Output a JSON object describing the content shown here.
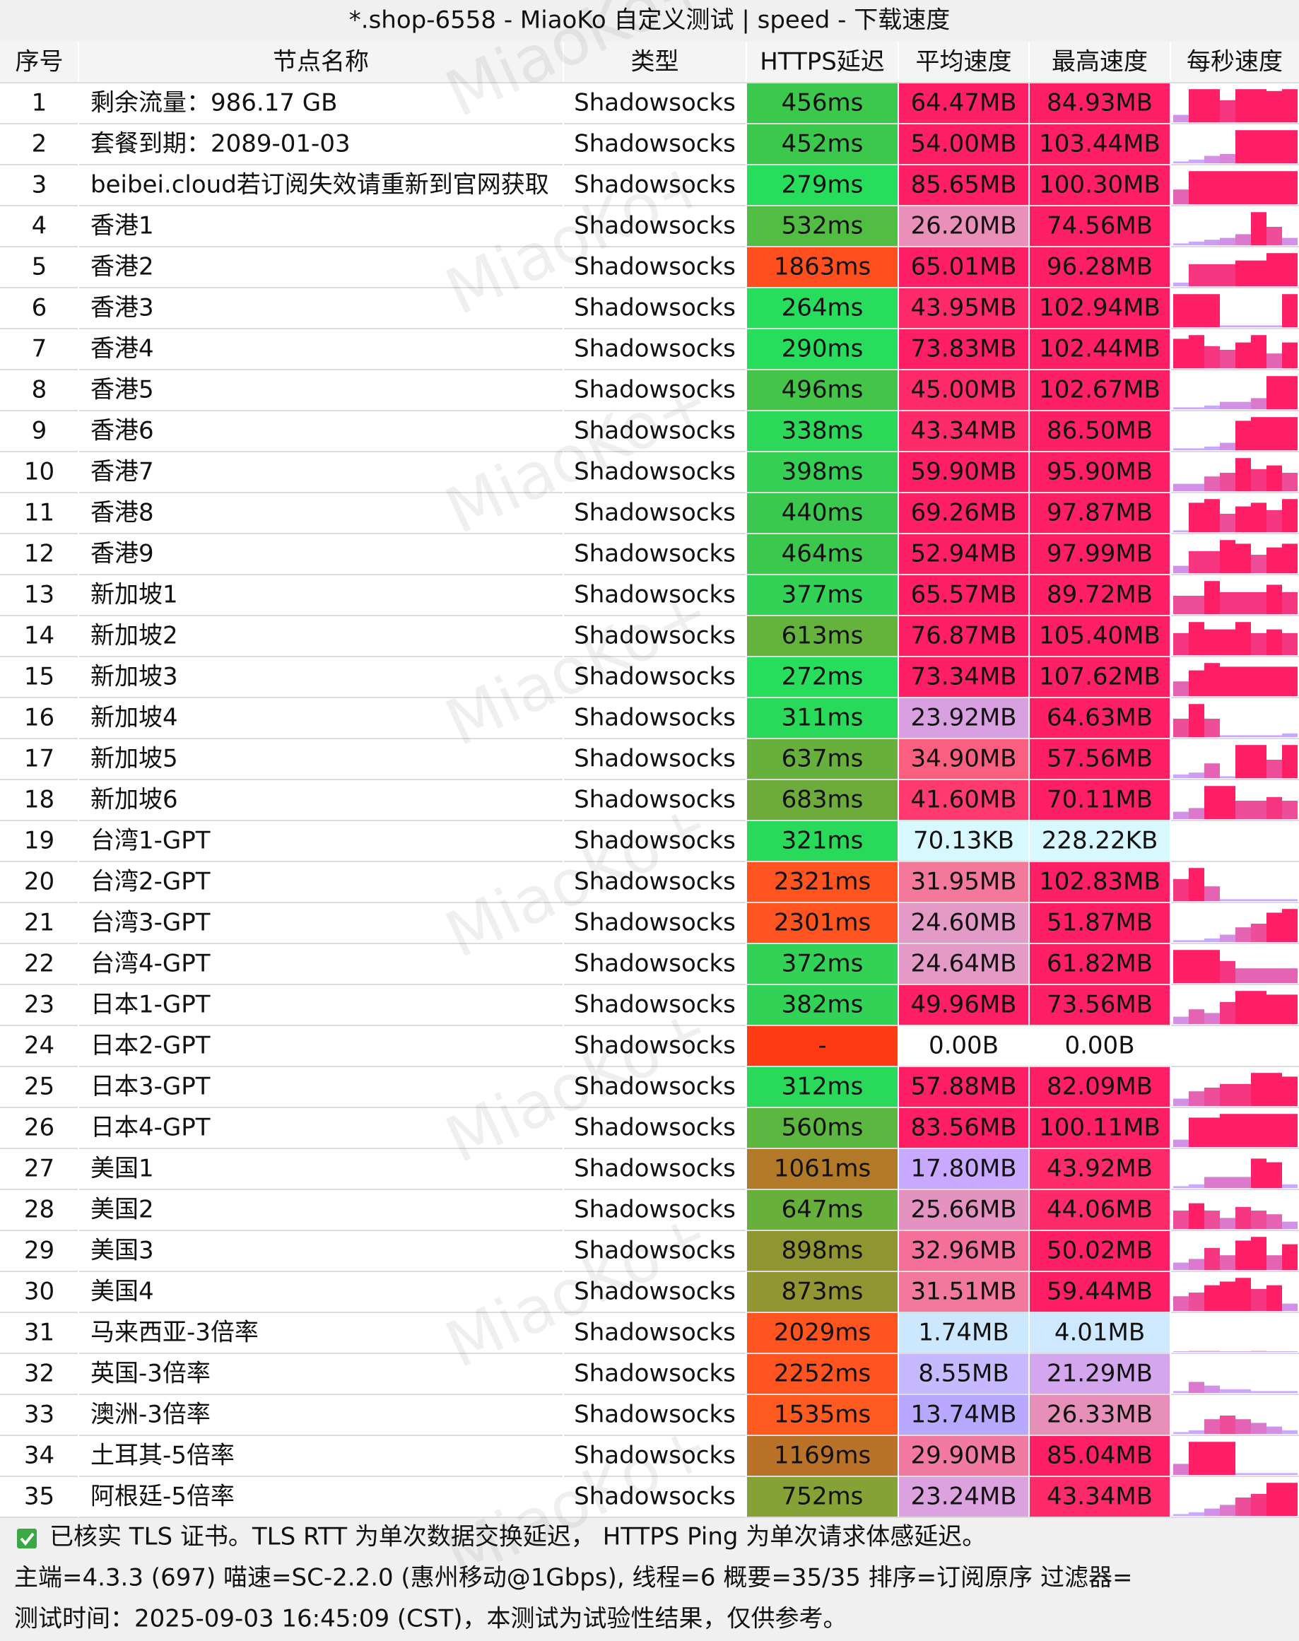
{
  "title": "*.shop-6558 - MiaoKo 自定义测试 | speed - 下载速度",
  "watermark": "MiaoKo+",
  "header": [
    "序号",
    "节点名称",
    "类型",
    "HTTPS延迟",
    "平均速度",
    "最高速度",
    "每秒速度"
  ],
  "rows": [
    {
      "no": 1,
      "name": "剩余流量：986.17 GB",
      "type": "Shadowsocks",
      "latency": "456ms",
      "latency_color": "#3cc84d",
      "avg": "64.47MB",
      "avg_color": "#ff1f66",
      "max": "84.93MB",
      "max_color": "#ff1f66",
      "speeds": [
        20,
        90,
        90,
        60,
        90,
        90,
        85,
        90
      ]
    },
    {
      "no": 2,
      "name": "套餐到期：2089-01-03",
      "type": "Shadowsocks",
      "latency": "452ms",
      "latency_color": "#3cc84d",
      "avg": "54.00MB",
      "avg_color": "#ff1f66",
      "max": "103.44MB",
      "max_color": "#ff1f66",
      "speeds": [
        5,
        10,
        20,
        25,
        90,
        90,
        90,
        90
      ]
    },
    {
      "no": 3,
      "name": "beibei.cloud若订阅失效请重新到官网获取",
      "type": "Shadowsocks",
      "latency": "279ms",
      "latency_color": "#26de5c",
      "avg": "85.65MB",
      "avg_color": "#ff1f66",
      "max": "100.30MB",
      "max_color": "#ff1f66",
      "speeds": [
        40,
        90,
        90,
        90,
        90,
        90,
        90,
        90
      ]
    },
    {
      "no": 4,
      "name": "香港1",
      "type": "Shadowsocks",
      "latency": "532ms",
      "latency_color": "#52bd43",
      "avg": "26.20MB",
      "avg_color": "#e98fb8",
      "max": "74.56MB",
      "max_color": "#ff1f66",
      "speeds": [
        5,
        10,
        15,
        20,
        30,
        90,
        50,
        20
      ]
    },
    {
      "no": 5,
      "name": "香港2",
      "type": "Shadowsocks",
      "latency": "1863ms",
      "latency_color": "#ff4f1f",
      "avg": "65.01MB",
      "avg_color": "#ff1f66",
      "max": "96.28MB",
      "max_color": "#ff1f66",
      "speeds": [
        10,
        60,
        60,
        60,
        70,
        70,
        90,
        90
      ]
    },
    {
      "no": 6,
      "name": "香港3",
      "type": "Shadowsocks",
      "latency": "264ms",
      "latency_color": "#26de5c",
      "avg": "43.95MB",
      "avg_color": "#ff2a6a",
      "max": "102.94MB",
      "max_color": "#ff1f66",
      "speeds": [
        90,
        90,
        90,
        5,
        5,
        5,
        5,
        90
      ]
    },
    {
      "no": 7,
      "name": "香港4",
      "type": "Shadowsocks",
      "latency": "290ms",
      "latency_color": "#26de5c",
      "avg": "73.83MB",
      "avg_color": "#ff1f66",
      "max": "102.44MB",
      "max_color": "#ff1f66",
      "speeds": [
        80,
        90,
        60,
        50,
        70,
        90,
        40,
        70
      ]
    },
    {
      "no": 8,
      "name": "香港5",
      "type": "Shadowsocks",
      "latency": "496ms",
      "latency_color": "#44c449",
      "avg": "45.00MB",
      "avg_color": "#ff2a6a",
      "max": "102.67MB",
      "max_color": "#ff1f66",
      "speeds": [
        5,
        5,
        10,
        20,
        20,
        30,
        90,
        90
      ]
    },
    {
      "no": 9,
      "name": "香港6",
      "type": "Shadowsocks",
      "latency": "338ms",
      "latency_color": "#2cd858",
      "avg": "43.34MB",
      "avg_color": "#ff2a6a",
      "max": "86.50MB",
      "max_color": "#ff1f66",
      "speeds": [
        5,
        5,
        10,
        20,
        80,
        90,
        90,
        90
      ]
    },
    {
      "no": 10,
      "name": "香港7",
      "type": "Shadowsocks",
      "latency": "398ms",
      "latency_color": "#33d054",
      "avg": "59.90MB",
      "avg_color": "#ff1f66",
      "max": "95.90MB",
      "max_color": "#ff1f66",
      "speeds": [
        20,
        20,
        40,
        50,
        90,
        60,
        70,
        50
      ]
    },
    {
      "no": 11,
      "name": "香港8",
      "type": "Shadowsocks",
      "latency": "440ms",
      "latency_color": "#3ac94e",
      "avg": "69.26MB",
      "avg_color": "#ff1f66",
      "max": "97.87MB",
      "max_color": "#ff1f66",
      "speeds": [
        5,
        80,
        90,
        50,
        70,
        80,
        60,
        90
      ]
    },
    {
      "no": 12,
      "name": "香港9",
      "type": "Shadowsocks",
      "latency": "464ms",
      "latency_color": "#3cc84d",
      "avg": "52.94MB",
      "avg_color": "#ff1f66",
      "max": "97.99MB",
      "max_color": "#ff1f66",
      "speeds": [
        20,
        60,
        60,
        90,
        80,
        50,
        70,
        80
      ]
    },
    {
      "no": 13,
      "name": "新加坡1",
      "type": "Shadowsocks",
      "latency": "377ms",
      "latency_color": "#31d256",
      "avg": "65.57MB",
      "avg_color": "#ff1f66",
      "max": "89.72MB",
      "max_color": "#ff1f66",
      "speeds": [
        50,
        50,
        90,
        60,
        60,
        60,
        80,
        60
      ]
    },
    {
      "no": 14,
      "name": "新加坡2",
      "type": "Shadowsocks",
      "latency": "613ms",
      "latency_color": "#64b33d",
      "avg": "76.87MB",
      "avg_color": "#ff1f66",
      "max": "105.40MB",
      "max_color": "#ff1f66",
      "speeds": [
        60,
        90,
        70,
        70,
        90,
        60,
        70,
        60
      ]
    },
    {
      "no": 15,
      "name": "新加坡3",
      "type": "Shadowsocks",
      "latency": "272ms",
      "latency_color": "#26de5c",
      "avg": "73.34MB",
      "avg_color": "#ff1f66",
      "max": "107.62MB",
      "max_color": "#ff1f66",
      "speeds": [
        40,
        70,
        90,
        80,
        80,
        80,
        80,
        80
      ]
    },
    {
      "no": 16,
      "name": "新加坡4",
      "type": "Shadowsocks",
      "latency": "311ms",
      "latency_color": "#29da5a",
      "avg": "23.92MB",
      "avg_color": "#d8a0e0",
      "max": "64.63MB",
      "max_color": "#ff1f66",
      "speeds": [
        50,
        90,
        50,
        5,
        5,
        5,
        5,
        10
      ]
    },
    {
      "no": 17,
      "name": "新加坡5",
      "type": "Shadowsocks",
      "latency": "637ms",
      "latency_color": "#68b03c",
      "avg": "34.90MB",
      "avg_color": "#fb5f7f",
      "max": "57.56MB",
      "max_color": "#ff1f66",
      "speeds": [
        10,
        15,
        40,
        5,
        90,
        90,
        50,
        90
      ]
    },
    {
      "no": 18,
      "name": "新加坡6",
      "type": "Shadowsocks",
      "latency": "683ms",
      "latency_color": "#6dac3b",
      "avg": "41.60MB",
      "avg_color": "#ff3a70",
      "max": "70.11MB",
      "max_color": "#ff1f66",
      "speeds": [
        20,
        30,
        90,
        90,
        50,
        50,
        60,
        50
      ]
    },
    {
      "no": 19,
      "name": "台湾1-GPT",
      "type": "Shadowsocks",
      "latency": "321ms",
      "latency_color": "#29da5a",
      "avg": "70.13KB",
      "avg_color": "#d8f8ff",
      "max": "228.22KB",
      "max_color": "#d8f8ff",
      "speeds": [
        0,
        0,
        0,
        0,
        0,
        0,
        0,
        0
      ]
    },
    {
      "no": 20,
      "name": "台湾2-GPT",
      "type": "Shadowsocks",
      "latency": "2321ms",
      "latency_color": "#ff5420",
      "avg": "31.95MB",
      "avg_color": "#f4789c",
      "max": "102.83MB",
      "max_color": "#ff1f66",
      "speeds": [
        60,
        90,
        40,
        5,
        5,
        5,
        5,
        5
      ]
    },
    {
      "no": 21,
      "name": "台湾3-GPT",
      "type": "Shadowsocks",
      "latency": "2301ms",
      "latency_color": "#ff5420",
      "avg": "24.60MB",
      "avg_color": "#e49ac6",
      "max": "51.87MB",
      "max_color": "#ff1f66",
      "speeds": [
        5,
        5,
        10,
        20,
        40,
        50,
        80,
        90
      ]
    },
    {
      "no": 22,
      "name": "台湾4-GPT",
      "type": "Shadowsocks",
      "latency": "372ms",
      "latency_color": "#31d256",
      "avg": "24.64MB",
      "avg_color": "#e49ac6",
      "max": "61.82MB",
      "max_color": "#ff1f66",
      "speeds": [
        90,
        90,
        90,
        60,
        40,
        40,
        40,
        40
      ]
    },
    {
      "no": 23,
      "name": "日本1-GPT",
      "type": "Shadowsocks",
      "latency": "382ms",
      "latency_color": "#31d256",
      "avg": "49.96MB",
      "avg_color": "#ff1f66",
      "max": "73.56MB",
      "max_color": "#ff1f66",
      "speeds": [
        20,
        40,
        30,
        60,
        90,
        90,
        80,
        80
      ]
    },
    {
      "no": 24,
      "name": "日本2-GPT",
      "type": "Shadowsocks",
      "latency": "-",
      "latency_color": "#ff3b14",
      "avg": "0.00B",
      "avg_color": "#ffffff",
      "max": "0.00B",
      "max_color": "#ffffff",
      "speeds": [
        0,
        0,
        0,
        0,
        0,
        0,
        0,
        0
      ]
    },
    {
      "no": 25,
      "name": "日本3-GPT",
      "type": "Shadowsocks",
      "latency": "312ms",
      "latency_color": "#29da5a",
      "avg": "57.88MB",
      "avg_color": "#ff1f66",
      "max": "82.09MB",
      "max_color": "#ff1f66",
      "speeds": [
        20,
        40,
        50,
        60,
        60,
        90,
        90,
        80
      ]
    },
    {
      "no": 26,
      "name": "日本4-GPT",
      "type": "Shadowsocks",
      "latency": "560ms",
      "latency_color": "#5cb740",
      "avg": "83.56MB",
      "avg_color": "#ff1f66",
      "max": "100.11MB",
      "max_color": "#ff1f66",
      "speeds": [
        20,
        80,
        80,
        90,
        90,
        90,
        90,
        90
      ]
    },
    {
      "no": 27,
      "name": "美国1",
      "type": "Shadowsocks",
      "latency": "1061ms",
      "latency_color": "#b27a28",
      "avg": "17.80MB",
      "avg_color": "#c9a8ff",
      "max": "43.92MB",
      "max_color": "#ff2a6a",
      "speeds": [
        5,
        10,
        30,
        30,
        30,
        80,
        70,
        10
      ]
    },
    {
      "no": 28,
      "name": "美国2",
      "type": "Shadowsocks",
      "latency": "647ms",
      "latency_color": "#68b03c",
      "avg": "25.66MB",
      "avg_color": "#e492c0",
      "max": "44.06MB",
      "max_color": "#ff2a6a",
      "speeds": [
        50,
        70,
        50,
        30,
        60,
        50,
        40,
        20
      ]
    },
    {
      "no": 29,
      "name": "美国3",
      "type": "Shadowsocks",
      "latency": "898ms",
      "latency_color": "#8f9530",
      "avg": "32.96MB",
      "avg_color": "#f4709a",
      "max": "50.02MB",
      "max_color": "#ff1f66",
      "speeds": [
        20,
        30,
        60,
        40,
        80,
        90,
        40,
        70
      ]
    },
    {
      "no": 30,
      "name": "美国4",
      "type": "Shadowsocks",
      "latency": "873ms",
      "latency_color": "#919532",
      "avg": "31.51MB",
      "avg_color": "#f2789e",
      "max": "59.44MB",
      "max_color": "#ff1f66",
      "speeds": [
        40,
        50,
        70,
        80,
        90,
        60,
        70,
        20
      ]
    },
    {
      "no": 31,
      "name": "马来西亚-3倍率",
      "type": "Shadowsocks",
      "latency": "2029ms",
      "latency_color": "#ff5420",
      "avg": "1.74MB",
      "avg_color": "#cbe8ff",
      "max": "4.01MB",
      "max_color": "#cde8ff",
      "speeds": [
        2,
        3,
        3,
        2,
        2,
        3,
        2,
        2
      ]
    },
    {
      "no": 32,
      "name": "英国-3倍率",
      "type": "Shadowsocks",
      "latency": "2252ms",
      "latency_color": "#ff5420",
      "avg": "8.55MB",
      "avg_color": "#c6b9ff",
      "max": "21.29MB",
      "max_color": "#d4a6ee",
      "speeds": [
        5,
        30,
        20,
        10,
        10,
        5,
        5,
        5
      ]
    },
    {
      "no": 33,
      "name": "澳洲-3倍率",
      "type": "Shadowsocks",
      "latency": "1535ms",
      "latency_color": "#ff5b20",
      "avg": "13.74MB",
      "avg_color": "#b8a8ff",
      "max": "26.33MB",
      "max_color": "#e68fb8",
      "speeds": [
        5,
        10,
        40,
        50,
        40,
        30,
        20,
        10
      ]
    },
    {
      "no": 34,
      "name": "土耳其-5倍率",
      "type": "Shadowsocks",
      "latency": "1169ms",
      "latency_color": "#b97228",
      "avg": "29.90MB",
      "avg_color": "#f27aa2",
      "max": "85.04MB",
      "max_color": "#ff1f66",
      "speeds": [
        30,
        90,
        90,
        90,
        5,
        5,
        5,
        5
      ]
    },
    {
      "no": 35,
      "name": "阿根廷-5倍率",
      "type": "Shadowsocks",
      "latency": "752ms",
      "latency_color": "#86a236",
      "avg": "23.24MB",
      "avg_color": "#dca2e0",
      "max": "43.34MB",
      "max_color": "#ff2a6a",
      "speeds": [
        5,
        10,
        20,
        30,
        50,
        60,
        90,
        90
      ]
    }
  ],
  "notes": [
    "已核实 TLS 证书。TLS RTT 为单次数据交换延迟， HTTPS Ping 为单次请求体感延迟。",
    "主端=4.3.3 (697) 喵速=SC-2.2.0 (惠州移动@1Gbps), 线程=6 概要=35/35 排序=订阅原序 过滤器=",
    "测试时间：2025-09-03 16:45:09 (CST)，本测试为试验性结果，仅供参考。"
  ]
}
